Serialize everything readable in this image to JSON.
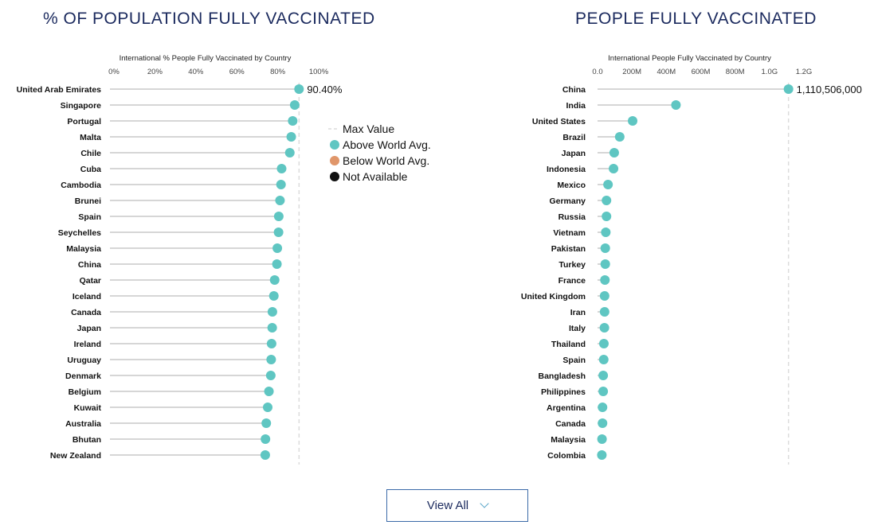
{
  "colors": {
    "above": "#5fc6c2",
    "below": "#e0966a",
    "na": "#111111",
    "stem": "#c8c8c8",
    "maxline": "#dcdcdc",
    "heading": "#1b2a5e"
  },
  "left_heading": "% OF POPULATION FULLY VACCINATED",
  "right_heading": "PEOPLE FULLY VACCINATED",
  "legend": {
    "max_value": "Max Value",
    "above": "Above World Avg.",
    "below": "Below World Avg.",
    "na": "Not Available"
  },
  "view_all_label": "View All",
  "chart_data": [
    {
      "type": "lollipop",
      "title": "International % People Fully Vaccinated by Country",
      "xlim": [
        0,
        100
      ],
      "ticks": [
        0,
        20,
        40,
        60,
        80,
        100
      ],
      "tick_labels": [
        "0%",
        "20%",
        "40%",
        "60%",
        "80%",
        "100%"
      ],
      "max_value": 90.4,
      "max_label": "90.40%",
      "categories": [
        "United Arab Emirates",
        "Singapore",
        "Portugal",
        "Malta",
        "Chile",
        "Cuba",
        "Cambodia",
        "Brunei",
        "Spain",
        "Seychelles",
        "Malaysia",
        "China",
        "Qatar",
        "Iceland",
        "Canada",
        "Japan",
        "Ireland",
        "Uruguay",
        "Denmark",
        "Belgium",
        "Kuwait",
        "Australia",
        "Bhutan",
        "New Zealand"
      ],
      "values": [
        90.4,
        88.3,
        87.3,
        86.6,
        85.9,
        81.9,
        81.6,
        81.1,
        80.5,
        80.4,
        79.8,
        79.6,
        78.5,
        78.1,
        77.4,
        77.3,
        77.0,
        76.8,
        76.6,
        75.7,
        75.1,
        74.4,
        74.0,
        73.9
      ],
      "status": [
        "above",
        "above",
        "above",
        "above",
        "above",
        "above",
        "above",
        "above",
        "above",
        "above",
        "above",
        "above",
        "above",
        "above",
        "above",
        "above",
        "above",
        "above",
        "above",
        "above",
        "above",
        "above",
        "above",
        "above"
      ]
    },
    {
      "type": "lollipop",
      "title": "International People Fully Vaccinated by Country",
      "xlim": [
        0,
        1200000000
      ],
      "ticks": [
        0,
        200000000,
        400000000,
        600000000,
        800000000,
        1000000000,
        1200000000
      ],
      "tick_labels": [
        "0.0",
        "200M",
        "400M",
        "600M",
        "800M",
        "1.0G",
        "1.2G"
      ],
      "max_value": 1110506000,
      "max_label": "1,110,506,000",
      "categories": [
        "China",
        "India",
        "United States",
        "Brazil",
        "Japan",
        "Indonesia",
        "Mexico",
        "Germany",
        "Russia",
        "Vietnam",
        "Pakistan",
        "Turkey",
        "France",
        "United Kingdom",
        "Iran",
        "Italy",
        "Thailand",
        "Spain",
        "Bangladesh",
        "Philippines",
        "Argentina",
        "Canada",
        "Malaysia",
        "Colombia"
      ],
      "values": [
        1110506000,
        456000000,
        204000000,
        129000000,
        97000000,
        93000000,
        61000000,
        52000000,
        52000000,
        48000000,
        45000000,
        45000000,
        43000000,
        41000000,
        41000000,
        40000000,
        37000000,
        36000000,
        33000000,
        33000000,
        29000000,
        29000000,
        26000000,
        25000000
      ],
      "status": [
        "above",
        "above",
        "above",
        "above",
        "above",
        "above",
        "above",
        "above",
        "above",
        "above",
        "above",
        "above",
        "above",
        "above",
        "above",
        "above",
        "above",
        "above",
        "above",
        "above",
        "above",
        "above",
        "above",
        "above"
      ]
    }
  ]
}
